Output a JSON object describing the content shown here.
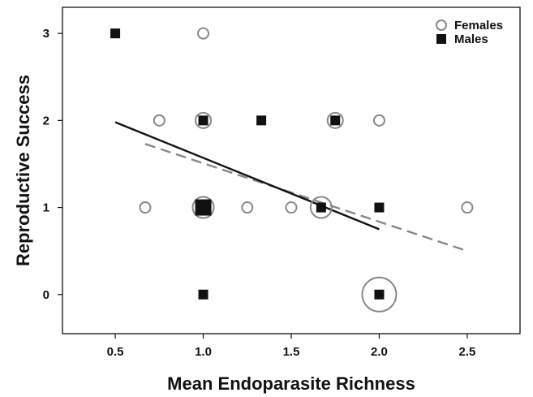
{
  "chart_data": {
    "type": "scatter",
    "xlabel": "Mean Endoparasite Richness",
    "ylabel": "Reproductive Success",
    "xlim": [
      0.2,
      2.8
    ],
    "ylim": [
      -0.45,
      3.3
    ],
    "xticks": [
      0.5,
      1.0,
      1.5,
      2.0,
      2.5
    ],
    "xtick_labels": [
      "0.5",
      "1.0",
      "1.5",
      "2.0",
      "2.5"
    ],
    "yticks": [
      0,
      1,
      2,
      3
    ],
    "ytick_labels": [
      "0",
      "1",
      "2",
      "3"
    ],
    "grid": false,
    "legend_position": "top-right",
    "note": "marker size encodes number of overlapping individuals",
    "series": [
      {
        "name": "Females",
        "marker": "open-circle",
        "color": "#888888",
        "points": [
          {
            "x": 1.0,
            "y": 3,
            "n": 1
          },
          {
            "x": 0.75,
            "y": 2,
            "n": 1
          },
          {
            "x": 1.0,
            "y": 2,
            "n": 2
          },
          {
            "x": 1.75,
            "y": 2,
            "n": 2
          },
          {
            "x": 2.0,
            "y": 2,
            "n": 1
          },
          {
            "x": 0.67,
            "y": 1,
            "n": 1
          },
          {
            "x": 1.0,
            "y": 1,
            "n": 3
          },
          {
            "x": 1.25,
            "y": 1,
            "n": 1
          },
          {
            "x": 1.5,
            "y": 1,
            "n": 1
          },
          {
            "x": 1.67,
            "y": 1,
            "n": 3
          },
          {
            "x": 2.5,
            "y": 1,
            "n": 1
          },
          {
            "x": 2.0,
            "y": 0,
            "n": 4
          }
        ],
        "trend": {
          "style": "dashed",
          "color": "#888888",
          "x": [
            0.67,
            2.5
          ],
          "y": [
            1.73,
            0.5
          ]
        }
      },
      {
        "name": "Males",
        "marker": "filled-square",
        "color": "#111111",
        "points": [
          {
            "x": 0.5,
            "y": 3,
            "n": 1
          },
          {
            "x": 1.0,
            "y": 2,
            "n": 1
          },
          {
            "x": 1.33,
            "y": 2,
            "n": 1
          },
          {
            "x": 1.75,
            "y": 2,
            "n": 1
          },
          {
            "x": 1.0,
            "y": 1,
            "n": 2
          },
          {
            "x": 1.67,
            "y": 1,
            "n": 1
          },
          {
            "x": 2.0,
            "y": 1,
            "n": 1
          },
          {
            "x": 1.0,
            "y": 0,
            "n": 1
          },
          {
            "x": 2.0,
            "y": 0,
            "n": 1
          }
        ],
        "trend": {
          "style": "solid",
          "color": "#111111",
          "x": [
            0.5,
            2.0
          ],
          "y": [
            1.98,
            0.75
          ]
        }
      }
    ]
  }
}
